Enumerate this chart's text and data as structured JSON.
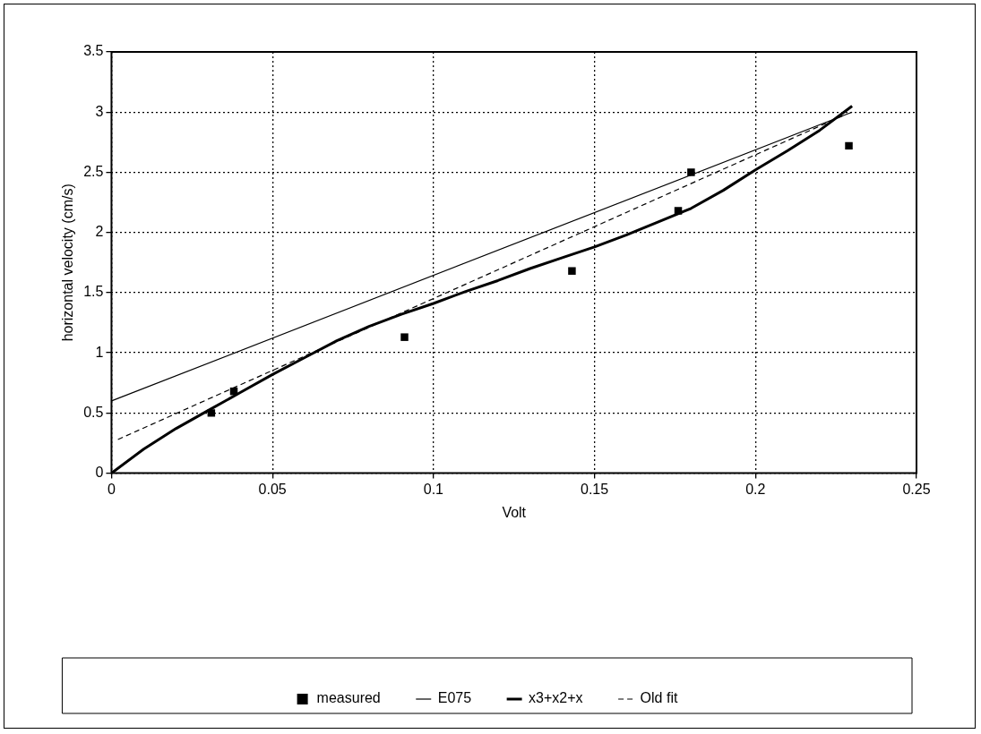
{
  "chart_data": {
    "type": "scatter",
    "xlabel": "Volt",
    "ylabel": "horizontal velocity (cm/s)",
    "xlim": [
      0,
      0.25
    ],
    "xticks": [
      0,
      0.05,
      0.1,
      0.15,
      0.2,
      0.25
    ],
    "ylim": [
      0,
      3.5
    ],
    "yticks": [
      0,
      0.5,
      1,
      1.5,
      2,
      2.5,
      3,
      3.5
    ],
    "grid": true,
    "legend": "bottom",
    "marker": "square",
    "series": [
      {
        "name": "measured",
        "color": "#000000",
        "x": [
          0.031,
          0.038,
          0.091,
          0.143,
          0.176,
          0.18,
          0.229
        ],
        "values": [
          0.5,
          0.68,
          1.13,
          1.68,
          2.18,
          2.5,
          2.72
        ]
      },
      {
        "name": "E075",
        "type": "line",
        "color": "#000000",
        "line_style": "solid",
        "marker": "none",
        "x": [
          0,
          0.23
        ],
        "values": [
          0.6,
          3.0
        ]
      },
      {
        "name": "x3+x2+x",
        "type": "line",
        "color": "#000000",
        "line_style": "solid",
        "marker": "none",
        "x": [
          0,
          0.01,
          0.02,
          0.03,
          0.04,
          0.05,
          0.06,
          0.07,
          0.08,
          0.09,
          0.1,
          0.11,
          0.12,
          0.13,
          0.14,
          0.15,
          0.16,
          0.17,
          0.18,
          0.19,
          0.2,
          0.21,
          0.22,
          0.23
        ],
        "values": [
          0,
          0.2,
          0.37,
          0.52,
          0.67,
          0.82,
          0.96,
          1.1,
          1.22,
          1.32,
          1.41,
          1.51,
          1.6,
          1.7,
          1.79,
          1.88,
          1.98,
          2.09,
          2.2,
          2.35,
          2.52,
          2.68,
          2.85,
          3.05
        ]
      },
      {
        "name": "Old fit",
        "type": "line",
        "color": "#000000",
        "line_style": "dashed",
        "marker": "none",
        "x": [
          0.002,
          0.228
        ],
        "values": [
          0.28,
          2.98
        ]
      }
    ]
  }
}
